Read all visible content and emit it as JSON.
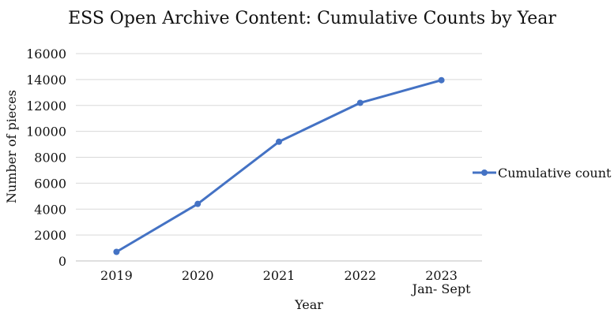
{
  "chart_data": {
    "type": "line",
    "title": "ESS Open Archive Content: Cumulative Counts by Year",
    "xlabel": "Year",
    "ylabel": "Number of pieces",
    "categories": [
      "2019",
      "2020",
      "2021",
      "2022",
      "2023"
    ],
    "category_sublabels": [
      "",
      "",
      "",
      "",
      "Jan- Sept"
    ],
    "series": [
      {
        "name": "Cumulative count",
        "values": [
          700,
          4400,
          9200,
          12200,
          13950
        ],
        "color": "#4472C4"
      }
    ],
    "ylim": [
      0,
      16000
    ],
    "yticks": [
      0,
      2000,
      4000,
      6000,
      8000,
      10000,
      12000,
      14000,
      16000
    ],
    "grid": true,
    "legend_position": "right"
  }
}
